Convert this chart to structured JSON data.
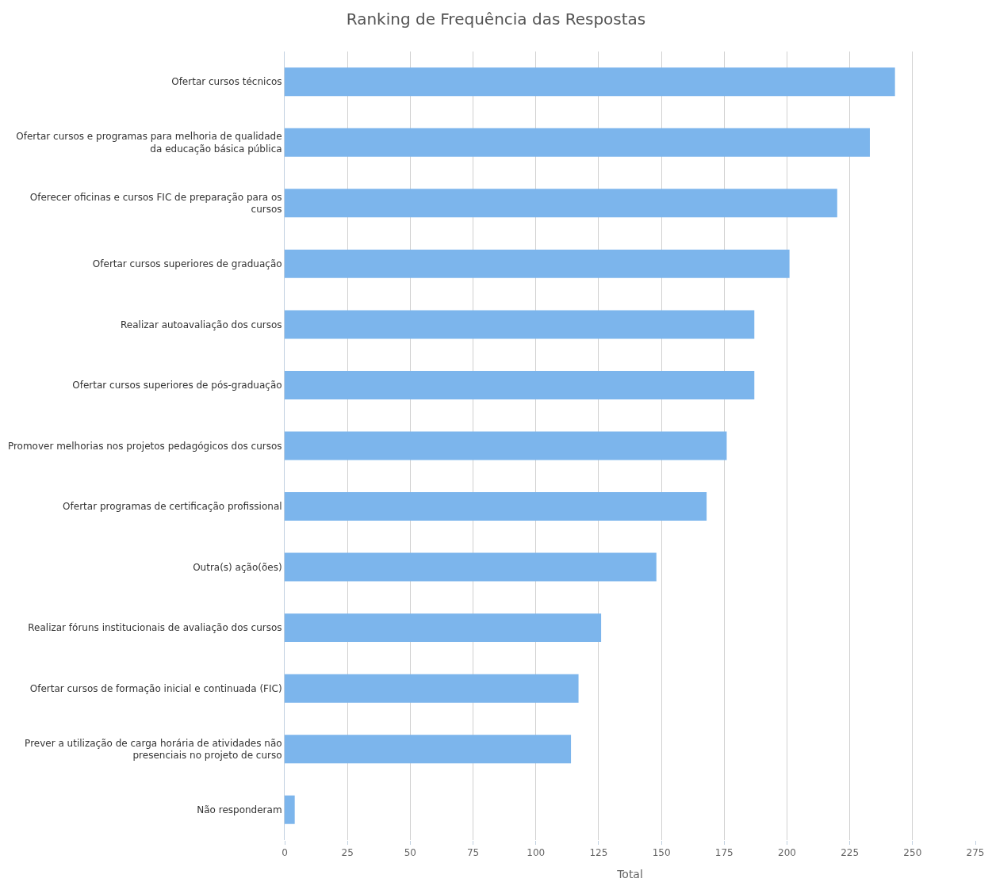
{
  "chart_data": {
    "type": "bar",
    "orientation": "horizontal",
    "title": "Ranking de Frequência das Respostas",
    "xlabel": "Total",
    "categories": [
      "Ofertar cursos técnicos",
      "Ofertar cursos e programas para melhoria de qualidade da educação básica pública",
      "Oferecer oficinas e cursos FIC de preparação para os cursos",
      "Ofertar cursos superiores de graduação",
      "Realizar autoavaliação dos cursos",
      "Ofertar cursos superiores de pós-graduação",
      "Promover melhorias nos projetos pedagógicos dos cursos",
      "Ofertar programas de certificação profissional",
      "Outra(s) ação(ões)",
      "Realizar fóruns institucionais de avaliação dos cursos",
      "Ofertar cursos de formação inicial e continuada (FIC)",
      "Prever a utilização de carga horária de atividades não presenciais no projeto de curso",
      "Não responderam"
    ],
    "values": [
      243,
      233,
      220,
      201,
      187,
      187,
      176,
      168,
      148,
      126,
      117,
      114,
      4
    ],
    "color": "#7cb5ec",
    "xlim": [
      0,
      275
    ],
    "xticks": [
      0,
      25,
      50,
      75,
      100,
      125,
      150,
      175,
      200,
      225,
      250,
      275
    ],
    "grid": "x"
  }
}
